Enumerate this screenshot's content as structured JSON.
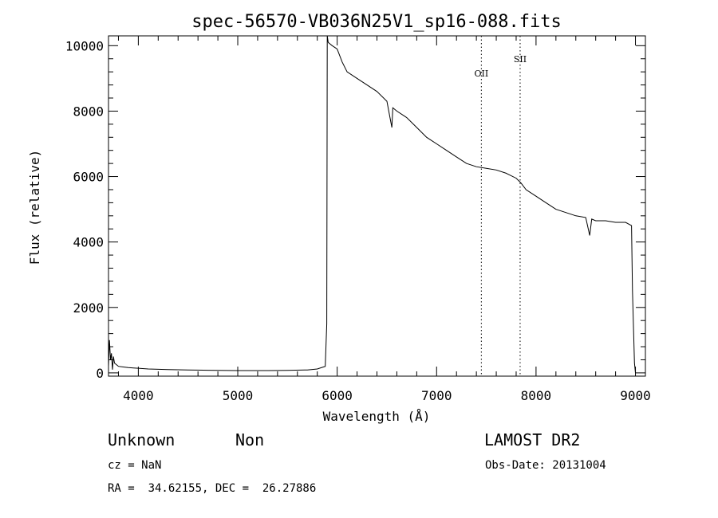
{
  "chart_data": {
    "type": "line",
    "title": "spec-56570-VB036N25V1_sp16-088.fits",
    "xlabel": "Wavelength (Å)",
    "ylabel": "Flux (relative)",
    "xlim": [
      3700,
      9100
    ],
    "ylim": [
      -100,
      10300
    ],
    "xticks": [
      4000,
      5000,
      6000,
      7000,
      8000,
      9000
    ],
    "yticks": [
      0,
      2000,
      4000,
      6000,
      8000,
      10000
    ],
    "grid": false,
    "series": [
      {
        "x": [
          3700,
          3710,
          3720,
          3730,
          3740,
          3750,
          3760,
          3780,
          3800,
          3850,
          3900,
          3950,
          4000,
          4100,
          4200,
          4300,
          4500,
          4700,
          5000,
          5300,
          5500,
          5700,
          5800,
          5880,
          5895,
          5900,
          5910,
          5950,
          6000,
          6050,
          6100,
          6200,
          6300,
          6400,
          6500,
          6550,
          6560,
          6600,
          6700,
          6800,
          6900,
          7000,
          7100,
          7200,
          7300,
          7400,
          7500,
          7600,
          7700,
          7800,
          7850,
          7900,
          8000,
          8100,
          8200,
          8300,
          8400,
          8500,
          8540,
          8560,
          8600,
          8700,
          8800,
          8900,
          8960,
          8970,
          8990,
          9000
        ],
        "y": [
          200,
          1000,
          400,
          600,
          100,
          500,
          300,
          250,
          200,
          180,
          160,
          150,
          140,
          120,
          110,
          100,
          90,
          80,
          70,
          70,
          75,
          90,
          120,
          200,
          1500,
          10300,
          10100,
          10000,
          9900,
          9500,
          9200,
          9000,
          8800,
          8600,
          8300,
          7500,
          8100,
          8000,
          7800,
          7500,
          7200,
          7000,
          6800,
          6600,
          6400,
          6300,
          6250,
          6200,
          6100,
          5950,
          5800,
          5600,
          5400,
          5200,
          5000,
          4900,
          4800,
          4750,
          4200,
          4700,
          4650,
          4650,
          4600,
          4600,
          4500,
          2500,
          300,
          0
        ]
      }
    ],
    "reference_lines": [
      {
        "x": 7450,
        "label": "OII"
      },
      {
        "x": 7840,
        "label": "SII"
      }
    ]
  },
  "footer": {
    "class_text": "Unknown",
    "subclass_text": "Non",
    "survey": "LAMOST DR2",
    "cz": "cz = NaN",
    "obs_date": "Obs-Date: 20131004",
    "radec": "RA =  34.62155, DEC =  26.27886"
  }
}
